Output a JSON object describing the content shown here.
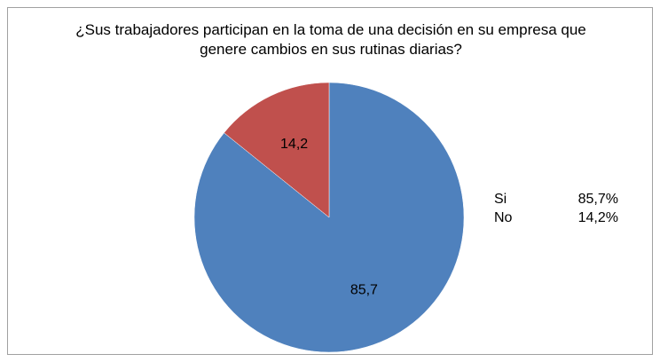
{
  "chart_data": {
    "type": "pie",
    "title_lines": [
      "¿Sus trabajadores participan en la toma de una decisión en su empresa que",
      "genere cambios en sus rutinas diarias?"
    ],
    "slices": [
      {
        "name": "Si",
        "value": 85.7,
        "label": "85,7",
        "legend_value": "85,7%",
        "color": "#4f81bd"
      },
      {
        "name": "No",
        "value": 14.2,
        "label": "14,2",
        "legend_value": "14,2%",
        "color": "#c0504d"
      }
    ],
    "start": "top, clockwise",
    "legend_position": "right"
  }
}
